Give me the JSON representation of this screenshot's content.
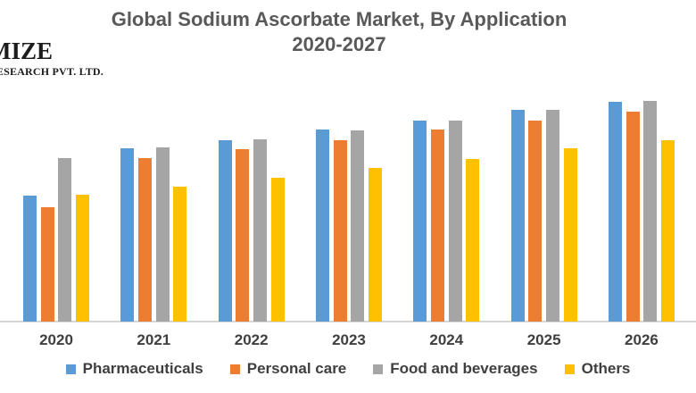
{
  "logo": {
    "line1": "MIZE",
    "line2": "RESEARCH PVT. LTD."
  },
  "title": {
    "line1": "Global Sodium Ascorbate Market, By Application",
    "line2": "2020-2027",
    "color": "#595959"
  },
  "chart_data": {
    "type": "bar",
    "title": "Global Sodium Ascorbate Market, By Application 2020-2027",
    "categories": [
      "2020",
      "2021",
      "2022",
      "2023",
      "2024",
      "2025",
      "2026"
    ],
    "series": [
      {
        "name": "Pharmaceuticals",
        "color": "#5B9BD5",
        "values": [
          57,
          78.5,
          82,
          87,
          91,
          96,
          99.5
        ]
      },
      {
        "name": "Personal care",
        "color": "#ED7D31",
        "values": [
          52,
          74,
          78,
          82,
          87,
          91,
          95
        ]
      },
      {
        "name": "Food and beverages",
        "color": "#A5A5A5",
        "values": [
          74,
          79,
          82.5,
          86.5,
          91,
          96,
          100
        ]
      },
      {
        "name": "Others",
        "color": "#FFC000",
        "values": [
          57.5,
          61,
          65,
          69.5,
          73.5,
          78.5,
          82
        ]
      }
    ],
    "value_axis_visible": false,
    "ylim": [
      0,
      100
    ],
    "gridlines": false,
    "legend_position": "bottom",
    "axis_line_color": "#D6D6D6",
    "label_color": "#3F3F3F"
  }
}
